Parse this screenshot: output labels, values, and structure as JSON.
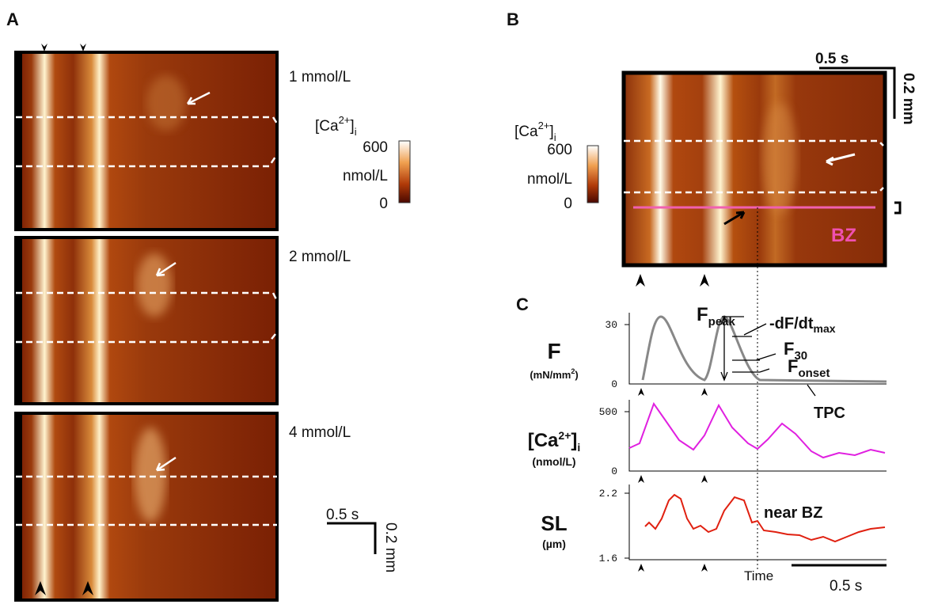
{
  "panel_a": {
    "label": "A",
    "images": [
      {
        "label": "1 mmol/L"
      },
      {
        "label": "2 mmol/L"
      },
      {
        "label": "4 mmol/L"
      }
    ],
    "colorbar": {
      "title": {
        "text": "[Ca",
        "sup": "2+",
        "close": "]",
        "sub": "i"
      },
      "max": 600,
      "unit": "nmol/L",
      "min": 0
    },
    "scale_bar": {
      "time": "0.5 s",
      "distance": "0.2 mm"
    }
  },
  "panel_b": {
    "label": "B",
    "colorbar": {
      "title": {
        "text": "[Ca",
        "sup": "2+",
        "close": "]",
        "sub": "i"
      },
      "max": 600,
      "unit": "nmol/L",
      "min": 0
    },
    "scale_bar": {
      "time": "0.5 s",
      "distance": "0.2 mm"
    },
    "region": "BZ"
  },
  "panel_c": {
    "label": "C",
    "traces": [
      {
        "label": "F",
        "unit": {
          "text": "(mN/mm",
          "sup": "2",
          "close": ")"
        },
        "ticks": [
          30,
          0
        ]
      },
      {
        "label": {
          "text": "[Ca",
          "sup": "2+",
          "close": "]",
          "sub": "i"
        },
        "unit": "(nmol/L)",
        "ticks": [
          500,
          0
        ]
      },
      {
        "label": "SL",
        "unit": "(µm)",
        "ticks": [
          2.2,
          1.6
        ]
      }
    ],
    "annotations": {
      "f_peak": {
        "text": "F",
        "sub": "peak"
      },
      "dfdt": {
        "text": "-dF/dt",
        "sub": "max"
      },
      "f30": {
        "text": "F",
        "sub": "30"
      },
      "f_onset": {
        "text": "F",
        "sub": "onset"
      },
      "tpc": "TPC",
      "near_bz": "near BZ"
    },
    "x_label": "Time",
    "scale_bar": "0.5 s"
  }
}
